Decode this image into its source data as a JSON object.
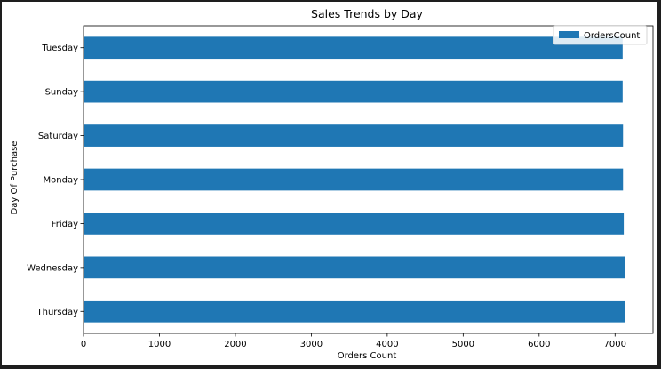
{
  "chart_data": {
    "type": "bar",
    "orientation": "horizontal",
    "title": "Sales Trends by Day",
    "xlabel": "Orders Count",
    "ylabel": "Day Of Purchase",
    "categories": [
      "Tuesday",
      "Sunday",
      "Saturday",
      "Monday",
      "Friday",
      "Wednesday",
      "Thursday"
    ],
    "series": [
      {
        "name": "OrdersCount",
        "values": [
          7100,
          7100,
          7105,
          7105,
          7115,
          7130,
          7130
        ]
      }
    ],
    "xlim": [
      0,
      7500
    ],
    "xticks": [
      "0",
      "1000",
      "2000",
      "3000",
      "4000",
      "5000",
      "6000",
      "7000"
    ],
    "grid": false,
    "legend_position": "top-right",
    "bar_color": "#1f77b4"
  }
}
